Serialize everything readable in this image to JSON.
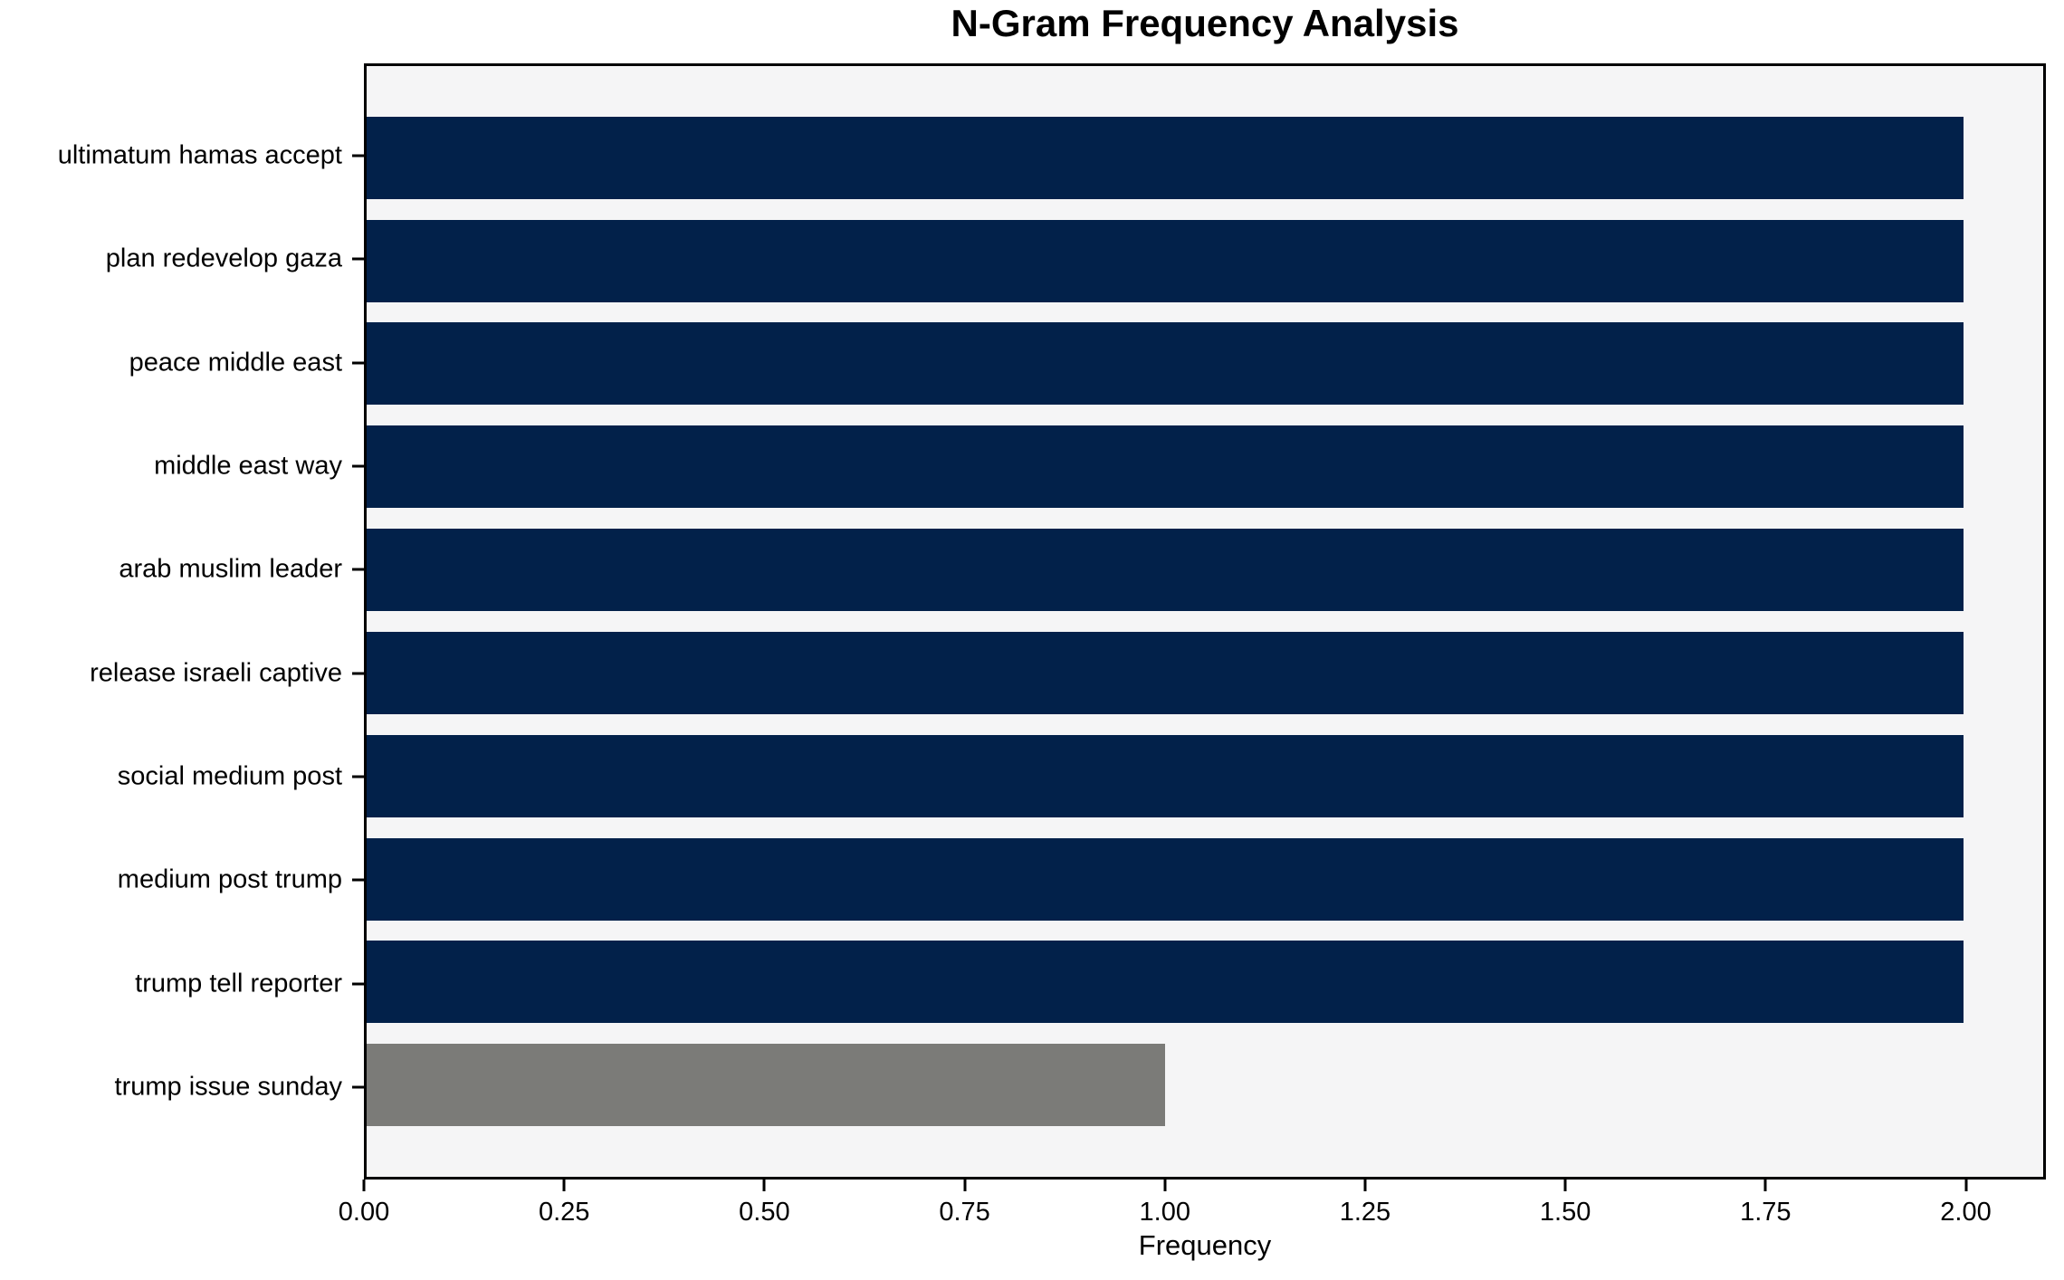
{
  "chart_data": {
    "type": "bar",
    "orientation": "horizontal",
    "title": "N-Gram Frequency Analysis",
    "xlabel": "Frequency",
    "ylabel": "",
    "categories": [
      "ultimatum hamas accept",
      "plan redevelop gaza",
      "peace middle east",
      "middle east way",
      "arab muslim leader",
      "release israeli captive",
      "social medium post",
      "medium post trump",
      "trump tell reporter",
      "trump issue sunday"
    ],
    "values": [
      2,
      2,
      2,
      2,
      2,
      2,
      2,
      2,
      2,
      1
    ],
    "bar_colors": [
      "#02214a",
      "#02214a",
      "#02214a",
      "#02214a",
      "#02214a",
      "#02214a",
      "#02214a",
      "#02214a",
      "#02214a",
      "#7b7b78"
    ],
    "xlim": [
      0,
      2.1
    ],
    "xticks": [
      "0.00",
      "0.25",
      "0.50",
      "0.75",
      "1.00",
      "1.25",
      "1.50",
      "1.75",
      "2.00"
    ],
    "grid": false,
    "legend_position": "none",
    "colors": {
      "bar_primary": "#02214a",
      "bar_secondary": "#7b7b78",
      "plot_background": "#f5f5f6",
      "figure_background": "#ffffff",
      "axis": "#000000"
    }
  }
}
